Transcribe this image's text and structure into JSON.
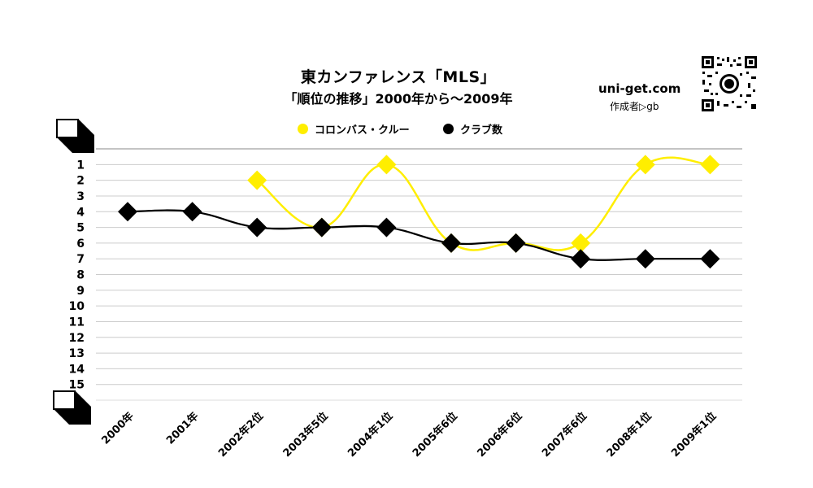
{
  "header": {
    "title": "東カンファレンス「MLS」",
    "subtitle": "「順位の推移」2000年から～2009年",
    "site": "uni-get.com",
    "author": "作成者▷gb"
  },
  "colors": {
    "team": "#ffee00",
    "clubs": "#000000",
    "grid": "#cccccc",
    "axis": "#888888"
  },
  "chart_data": {
    "type": "line",
    "title": "東カンファレンス「MLS」",
    "subtitle": "「順位の推移」2000年から～2009年",
    "categories": [
      "2000年",
      "2001年",
      "2002年2位",
      "2003年5位",
      "2004年1位",
      "2005年6位",
      "2006年6位",
      "2007年6位",
      "2008年1位",
      "2009年1位"
    ],
    "y_ticks": [
      "1",
      "2",
      "3",
      "4",
      "5",
      "6",
      "7",
      "8",
      "9",
      "10",
      "11",
      "12",
      "13",
      "14",
      "15"
    ],
    "ylim": [
      0,
      16
    ],
    "y_inverted": true,
    "grid": true,
    "legend_position": "top",
    "marker": "diamond",
    "smooth": true,
    "series": [
      {
        "name": "コロンバス・クルー",
        "color": "#ffee00",
        "values": [
          null,
          null,
          2,
          5,
          1,
          6,
          6,
          6,
          1,
          1
        ]
      },
      {
        "name": "クラブ数",
        "color": "#000000",
        "values": [
          4,
          4,
          5,
          5,
          5,
          6,
          6,
          7,
          7,
          7
        ]
      }
    ]
  }
}
